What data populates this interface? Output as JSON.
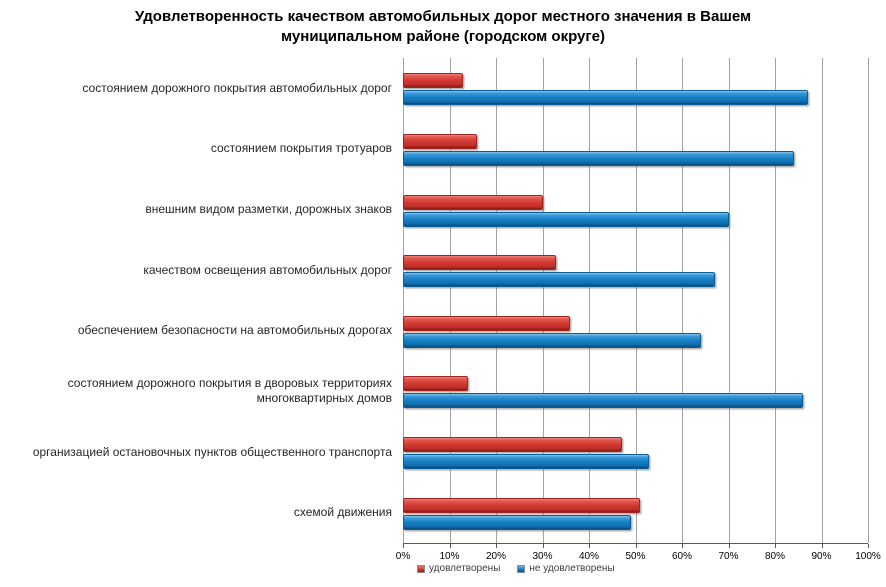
{
  "title": "Удовлетворенность качеством автомобильных дорог местного значения в Вашем муниципальном районе (городском округе)",
  "colors": {
    "satisfied": "#D23A33",
    "not_satisfied": "#1680C4",
    "gridline": "#A3A3A3",
    "axis": "#595959",
    "title_text": "#000000",
    "category_text": "#262626"
  },
  "chart_data": {
    "type": "bar",
    "orientation": "horizontal",
    "title": "Удовлетворенность качеством автомобильных дорог местного значения в Вашем муниципальном районе (городском округе)",
    "categories": [
      "состоянием дорожного покрытия автомобильных дорог",
      "состоянием покрытия тротуаров",
      "внешним видом разметки, дорожных знаков",
      "качеством освещения автомобильных дорог",
      "обеспечением безопасности на автомобильных дорогах",
      "состоянием дорожного покрытия в дворовых территориях многоквартирных домов",
      "организацией остановочных пунктов общественного транспорта",
      "схемой движения"
    ],
    "series": [
      {
        "key": "satisfied",
        "name": "удовлетворены",
        "color": "#D23A33",
        "values": [
          13,
          16,
          30,
          33,
          36,
          14,
          47,
          51
        ]
      },
      {
        "key": "not-satisfied",
        "name": "не удовлетворены",
        "color": "#1680C4",
        "values": [
          87,
          84,
          70,
          67,
          64,
          86,
          53,
          49
        ]
      }
    ],
    "xlim": [
      0,
      100
    ],
    "x_ticks": [
      "0%",
      "10%",
      "20%",
      "30%",
      "40%",
      "50%",
      "60%",
      "70%",
      "80%",
      "90%",
      "100%"
    ],
    "grid": "vertical",
    "legend_position": "bottom",
    "xlabel": "",
    "ylabel": ""
  }
}
